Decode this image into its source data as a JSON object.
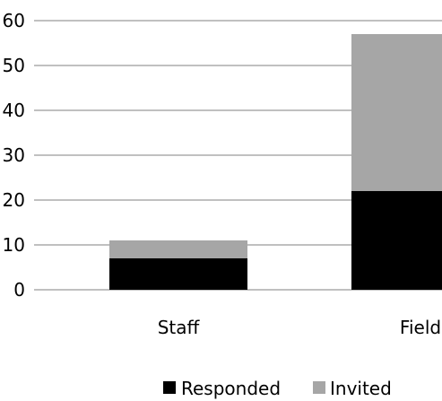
{
  "chart_data": {
    "type": "bar",
    "stacked": true,
    "categories": [
      "Staff",
      "Field"
    ],
    "series": [
      {
        "name": "Responded",
        "values": [
          7,
          22
        ],
        "color": "#000000"
      },
      {
        "name": "Invited",
        "values": [
          4,
          35
        ],
        "color": "#a6a6a6"
      }
    ],
    "ylim": [
      0,
      60
    ],
    "yticks": [
      0,
      10,
      20,
      30,
      40,
      50,
      60
    ],
    "grid": true,
    "gridColor": "#808080",
    "legend": "bottom"
  }
}
